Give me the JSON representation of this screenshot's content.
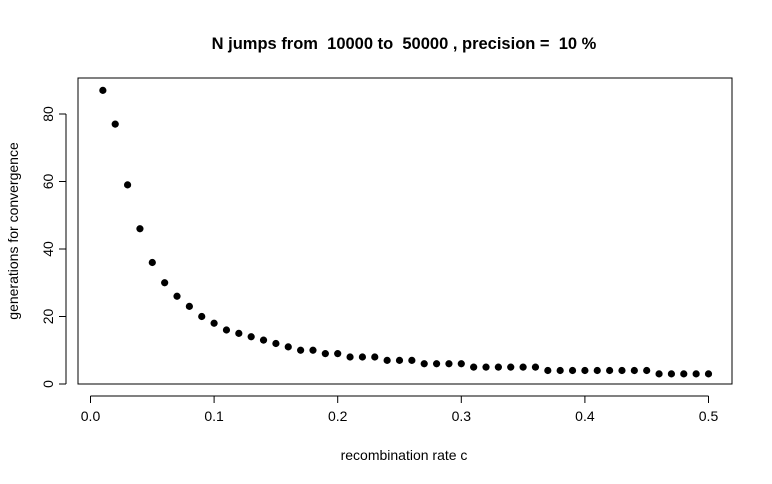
{
  "chart_data": {
    "type": "scatter",
    "title": "N jumps from  10000 to  50000 , precision =  10 %",
    "xlabel": "recombination rate c",
    "ylabel": "generations for convergence",
    "xlim": [
      0.0,
      0.5
    ],
    "ylim": [
      0,
      90
    ],
    "x_ticks": [
      0.0,
      0.1,
      0.2,
      0.3,
      0.4,
      0.5
    ],
    "x_tick_labels": [
      "0.0",
      "0.1",
      "0.2",
      "0.3",
      "0.4",
      "0.5"
    ],
    "y_ticks": [
      0,
      20,
      40,
      60,
      80
    ],
    "y_tick_labels": [
      "0",
      "20",
      "40",
      "60",
      "80"
    ],
    "grid": false,
    "legend": "none",
    "marker_color": "#000000",
    "x": [
      0.01,
      0.02,
      0.03,
      0.04,
      0.05,
      0.06,
      0.07,
      0.08,
      0.09,
      0.1,
      0.11,
      0.12,
      0.13,
      0.14,
      0.15,
      0.16,
      0.17,
      0.18,
      0.19,
      0.2,
      0.21,
      0.22,
      0.23,
      0.24,
      0.25,
      0.26,
      0.27,
      0.28,
      0.29,
      0.3,
      0.31,
      0.32,
      0.33,
      0.34,
      0.35,
      0.36,
      0.37,
      0.38,
      0.39,
      0.4,
      0.41,
      0.42,
      0.43,
      0.44,
      0.45,
      0.46,
      0.47,
      0.48,
      0.49,
      0.5
    ],
    "y": [
      87,
      77,
      59,
      46,
      36,
      30,
      26,
      23,
      20,
      18,
      16,
      15,
      14,
      13,
      12,
      11,
      10,
      10,
      9,
      9,
      8,
      8,
      8,
      7,
      7,
      7,
      6,
      6,
      6,
      6,
      5,
      5,
      5,
      5,
      5,
      5,
      4,
      4,
      4,
      4,
      4,
      4,
      4,
      4,
      4,
      3,
      3,
      3,
      3,
      3
    ]
  }
}
